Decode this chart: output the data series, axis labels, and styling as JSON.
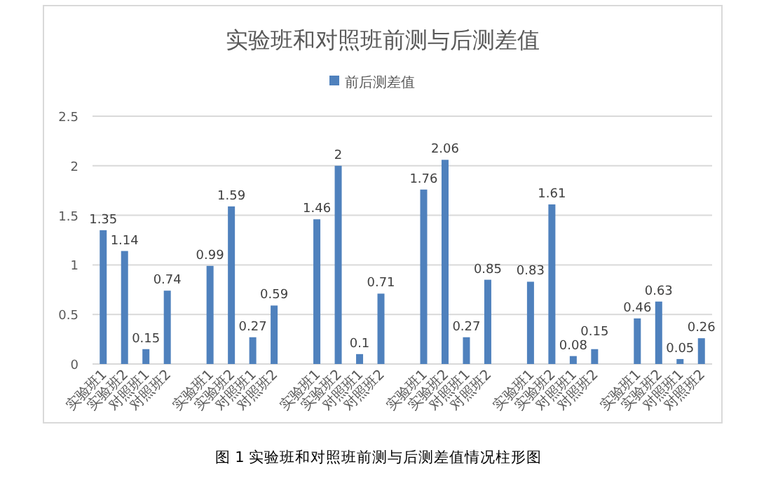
{
  "chart_data": {
    "type": "bar",
    "title": "实验班和对照班前测与后测差值",
    "categories": [
      "实验班1",
      "实验班2",
      "对照班1",
      "对照班2",
      null,
      "实验班1",
      "实验班2",
      "对照班1",
      "对照班2",
      null,
      "实验班1",
      "实验班2",
      "对照班1",
      "对照班2",
      null,
      "实验班1",
      "实验班2",
      "对照班1",
      "对照班2",
      null,
      "实验班1",
      "实验班2",
      "对照班1",
      "对照班2",
      null,
      "实验班1",
      "实验班2",
      "对照班1",
      "对照班2"
    ],
    "series": [
      {
        "name": "前后测差值",
        "color": "#4f81bd",
        "values": [
          1.35,
          1.14,
          0.15,
          0.74,
          null,
          0.99,
          1.59,
          0.27,
          0.59,
          null,
          1.46,
          2,
          0.1,
          0.71,
          null,
          1.76,
          2.06,
          0.27,
          0.85,
          null,
          0.83,
          1.61,
          0.08,
          0.15,
          null,
          0.46,
          0.63,
          0.05,
          0.26
        ]
      }
    ],
    "ylim": [
      0,
      2.5
    ],
    "yticks": [
      0,
      0.5,
      1,
      1.5,
      2,
      2.5
    ],
    "grid": "y",
    "legend": "top",
    "data_labels": true,
    "annotations": [
      "图 1      实验班和对照班前测与后测差值情况柱形图"
    ]
  }
}
